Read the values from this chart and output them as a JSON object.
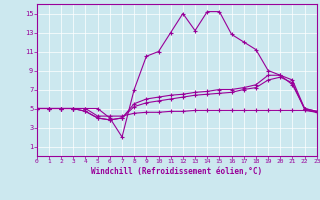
{
  "xlabel": "Windchill (Refroidissement éolien,°C)",
  "background_color": "#cce8ef",
  "line_color": "#990099",
  "grid_color": "#ffffff",
  "xlim": [
    0,
    23
  ],
  "ylim": [
    0,
    16
  ],
  "xticks": [
    0,
    1,
    2,
    3,
    4,
    5,
    6,
    7,
    8,
    9,
    10,
    11,
    12,
    13,
    14,
    15,
    16,
    17,
    18,
    19,
    20,
    21,
    22,
    23
  ],
  "yticks": [
    1,
    3,
    5,
    7,
    9,
    11,
    13,
    15
  ],
  "hours": [
    0,
    1,
    2,
    3,
    4,
    5,
    6,
    7,
    8,
    9,
    10,
    11,
    12,
    13,
    14,
    15,
    16,
    17,
    18,
    19,
    20,
    21,
    22,
    23
  ],
  "line1": [
    5,
    5,
    5,
    5,
    5,
    5,
    4,
    2.0,
    7,
    10.5,
    11,
    13,
    15,
    13.2,
    15.2,
    15.2,
    12.8,
    12,
    11.2,
    9,
    8.5,
    7.5,
    5,
    4.7
  ],
  "line2": [
    5,
    5,
    5,
    5,
    4.7,
    4,
    3.8,
    4,
    5.5,
    6,
    6.2,
    6.4,
    6.5,
    6.7,
    6.8,
    7,
    7,
    7.2,
    7.5,
    8.5,
    8.5,
    8,
    5,
    4.7
  ],
  "line3": [
    5,
    5,
    5,
    5,
    4.7,
    4,
    3.8,
    4,
    5.2,
    5.6,
    5.8,
    6,
    6.2,
    6.4,
    6.5,
    6.6,
    6.7,
    7,
    7.2,
    8,
    8.3,
    7.7,
    4.9,
    4.6
  ],
  "line4": [
    5,
    5,
    5,
    5,
    5,
    4.2,
    4.2,
    4.2,
    4.5,
    4.6,
    4.6,
    4.7,
    4.7,
    4.8,
    4.8,
    4.8,
    4.8,
    4.8,
    4.8,
    4.8,
    4.8,
    4.8,
    4.8,
    4.6
  ]
}
